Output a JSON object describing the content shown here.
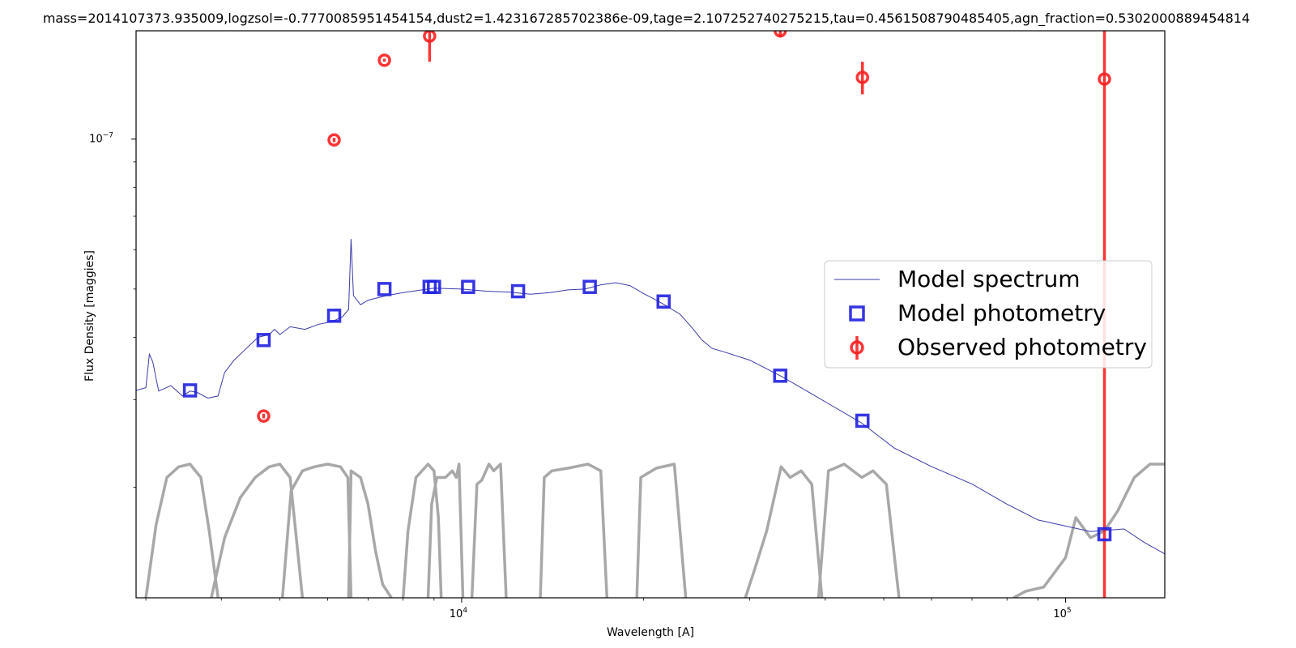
{
  "chart_data": {
    "type": "line",
    "title": "mass=2014107373.935009,logzsol=-0.7770085951454154,dust2=1.423167285702386e-09,tage=2.107252740275215,tau=0.4561508790485405,agn_fraction=0.5302000889454814",
    "xlabel": "Wavelength [A]",
    "ylabel": "Flux Density [maggies]",
    "x_scale": "log",
    "y_scale": "log",
    "xlim": [
      2890,
      146000
    ],
    "ylim": [
      1.2e-08,
      1.65e-07
    ],
    "x_ticks": [
      {
        "value": 10000,
        "label": "10^4"
      },
      {
        "value": 100000,
        "label": "10^5"
      }
    ],
    "y_ticks": [
      {
        "value": 1e-07,
        "label": "10^-7"
      }
    ],
    "grid": false,
    "legend": {
      "position": "center-right",
      "entries": [
        {
          "label": "Model spectrum",
          "marker": "line",
          "color": "#3a3aa8"
        },
        {
          "label": "Model photometry",
          "marker": "square",
          "color": "#1f1fe0"
        },
        {
          "label": "Observed photometry",
          "marker": "circle-errorbar",
          "color": "#ff2020"
        }
      ]
    },
    "series": [
      {
        "name": "Model spectrum",
        "color": "#3a3aa8",
        "points": [
          [
            2890,
            3.13e-08
          ],
          [
            3000,
            3.17e-08
          ],
          [
            3040,
            3.7e-08
          ],
          [
            3080,
            3.57e-08
          ],
          [
            3150,
            3.12e-08
          ],
          [
            3300,
            3.2e-08
          ],
          [
            3450,
            3.05e-08
          ],
          [
            3550,
            3.12e-08
          ],
          [
            3650,
            3.1e-08
          ],
          [
            3800,
            3.02e-08
          ],
          [
            3950,
            3.05e-08
          ],
          [
            4050,
            3.4e-08
          ],
          [
            4200,
            3.6e-08
          ],
          [
            4400,
            3.8e-08
          ],
          [
            4600,
            4e-08
          ],
          [
            4800,
            4.05e-08
          ],
          [
            4900,
            4.15e-08
          ],
          [
            5000,
            4.05e-08
          ],
          [
            5200,
            4.2e-08
          ],
          [
            5500,
            4.15e-08
          ],
          [
            5800,
            4.25e-08
          ],
          [
            6100,
            4.3e-08
          ],
          [
            6350,
            4.4e-08
          ],
          [
            6500,
            4.55e-08
          ],
          [
            6560,
            6.3e-08
          ],
          [
            6620,
            4.85e-08
          ],
          [
            6800,
            4.65e-08
          ],
          [
            7000,
            4.75e-08
          ],
          [
            7500,
            4.85e-08
          ],
          [
            8000,
            4.92e-08
          ],
          [
            9000,
            5.02e-08
          ],
          [
            10000,
            5e-08
          ],
          [
            11000,
            4.95e-08
          ],
          [
            12000,
            4.93e-08
          ],
          [
            13000,
            4.88e-08
          ],
          [
            14000,
            4.92e-08
          ],
          [
            15000,
            4.98e-08
          ],
          [
            16000,
            5e-08
          ],
          [
            17000,
            5.1e-08
          ],
          [
            18000,
            5.15e-08
          ],
          [
            19000,
            5.08e-08
          ],
          [
            20000,
            4.9e-08
          ],
          [
            21000,
            4.75e-08
          ],
          [
            22000,
            4.6e-08
          ],
          [
            23000,
            4.45e-08
          ],
          [
            24000,
            4.2e-08
          ],
          [
            25000,
            3.95e-08
          ],
          [
            26000,
            3.8e-08
          ],
          [
            27000,
            3.75e-08
          ],
          [
            30000,
            3.6e-08
          ],
          [
            34000,
            3.33e-08
          ],
          [
            40000,
            2.97e-08
          ],
          [
            46000,
            2.69e-08
          ],
          [
            52000,
            2.4e-08
          ],
          [
            60000,
            2.2e-08
          ],
          [
            70000,
            2.03e-08
          ],
          [
            80000,
            1.85e-08
          ],
          [
            90000,
            1.72e-08
          ],
          [
            110000,
            1.63e-08
          ],
          [
            125000,
            1.65e-08
          ],
          [
            135000,
            1.55e-08
          ],
          [
            146000,
            1.47e-08
          ]
        ]
      },
      {
        "name": "Model photometry",
        "marker": "square",
        "color": "#1f1fe0",
        "points": [
          [
            3550,
            3.13e-08
          ],
          [
            4700,
            3.95e-08
          ],
          [
            6150,
            4.42e-08
          ],
          [
            7450,
            5e-08
          ],
          [
            8850,
            5.05e-08
          ],
          [
            9000,
            5.05e-08
          ],
          [
            10250,
            5.05e-08
          ],
          [
            12400,
            4.95e-08
          ],
          [
            16300,
            5.05e-08
          ],
          [
            21600,
            4.72e-08
          ],
          [
            33700,
            3.35e-08
          ],
          [
            46100,
            2.72e-08
          ],
          [
            116000,
            1.61e-08
          ]
        ]
      },
      {
        "name": "Observed photometry",
        "marker": "circle-errorbar",
        "color": "#ff2020",
        "points": [
          {
            "x": 4700,
            "y": 2.78e-08,
            "yerr": 3e-10
          },
          {
            "x": 6150,
            "y": 9.96e-08,
            "yerr": 1e-09
          },
          {
            "x": 7450,
            "y": 1.44e-07,
            "yerr": 1e-09
          },
          {
            "x": 8850,
            "y": 1.61e-07,
            "yerr": 1.8e-08
          },
          {
            "x": 33700,
            "y": 1.65e-07,
            "yerr": 5e-09
          },
          {
            "x": 46100,
            "y": 1.33e-07,
            "yerr": 1e-08
          },
          {
            "x": 116000,
            "y": 1.32e-07,
            "yerr": 1.5e-07
          }
        ]
      }
    ],
    "filters": {
      "color": "#a8a8a8",
      "curves": [
        [
          [
            3000,
            0.0
          ],
          [
            3120,
            0.55
          ],
          [
            3250,
            0.9
          ],
          [
            3400,
            0.98
          ],
          [
            3550,
            1.0
          ],
          [
            3700,
            0.9
          ],
          [
            3820,
            0.5
          ],
          [
            3950,
            0.0
          ]
        ],
        [
          [
            3850,
            0.0
          ],
          [
            4050,
            0.45
          ],
          [
            4300,
            0.75
          ],
          [
            4550,
            0.9
          ],
          [
            4800,
            0.98
          ],
          [
            5000,
            1.0
          ],
          [
            5200,
            0.9
          ],
          [
            5450,
            0.0
          ]
        ],
        [
          [
            5050,
            0.0
          ],
          [
            5220,
            0.8
          ],
          [
            5450,
            0.95
          ],
          [
            5700,
            0.98
          ],
          [
            6000,
            1.0
          ],
          [
            6300,
            0.98
          ],
          [
            6480,
            0.9
          ],
          [
            6560,
            0.0
          ]
        ],
        [
          [
            6500,
            0.0
          ],
          [
            6560,
            0.95
          ],
          [
            6800,
            0.9
          ],
          [
            7000,
            0.7
          ],
          [
            7200,
            0.35
          ],
          [
            7400,
            0.1
          ],
          [
            7650,
            0.0
          ]
        ],
        [
          [
            8000,
            0.0
          ],
          [
            8150,
            0.5
          ],
          [
            8400,
            0.9
          ],
          [
            8800,
            1.0
          ],
          [
            9000,
            0.95
          ],
          [
            9150,
            0.6
          ],
          [
            9250,
            0.0
          ]
        ],
        [
          [
            8800,
            0.0
          ],
          [
            8920,
            0.7
          ],
          [
            9100,
            0.9
          ],
          [
            9400,
            0.9
          ],
          [
            9650,
            0.95
          ],
          [
            9800,
            0.9
          ],
          [
            9900,
            1.0
          ],
          [
            10050,
            0.0
          ]
        ],
        [
          [
            10400,
            0.0
          ],
          [
            10600,
            0.85
          ],
          [
            10800,
            0.88
          ],
          [
            11100,
            1.0
          ],
          [
            11300,
            0.95
          ],
          [
            11600,
            1.0
          ],
          [
            11850,
            0.0
          ]
        ],
        [
          [
            13500,
            0.0
          ],
          [
            13700,
            0.9
          ],
          [
            14100,
            0.95
          ],
          [
            15000,
            0.97
          ],
          [
            16200,
            1.0
          ],
          [
            17000,
            0.95
          ],
          [
            17400,
            0.0
          ]
        ],
        [
          [
            19500,
            0.0
          ],
          [
            19800,
            0.9
          ],
          [
            21000,
            0.97
          ],
          [
            22500,
            1.0
          ],
          [
            23500,
            0.0
          ]
        ],
        [
          [
            29500,
            0.0
          ],
          [
            30500,
            0.2
          ],
          [
            32000,
            0.5
          ],
          [
            33800,
            0.98
          ],
          [
            35000,
            0.9
          ],
          [
            36500,
            0.95
          ],
          [
            38000,
            0.85
          ],
          [
            39500,
            0.0
          ]
        ],
        [
          [
            39000,
            0.0
          ],
          [
            40500,
            0.95
          ],
          [
            43000,
            1.0
          ],
          [
            46000,
            0.9
          ],
          [
            48000,
            0.95
          ],
          [
            50500,
            0.85
          ],
          [
            53000,
            0.0
          ]
        ],
        [
          [
            82000,
            0.0
          ],
          [
            86000,
            0.05
          ],
          [
            92000,
            0.08
          ],
          [
            100000,
            0.3
          ],
          [
            104000,
            0.6
          ],
          [
            110000,
            0.45
          ],
          [
            116000,
            0.5
          ],
          [
            122000,
            0.65
          ],
          [
            130000,
            0.9
          ],
          [
            138000,
            1.0
          ],
          [
            146000,
            1.0
          ]
        ]
      ]
    }
  }
}
